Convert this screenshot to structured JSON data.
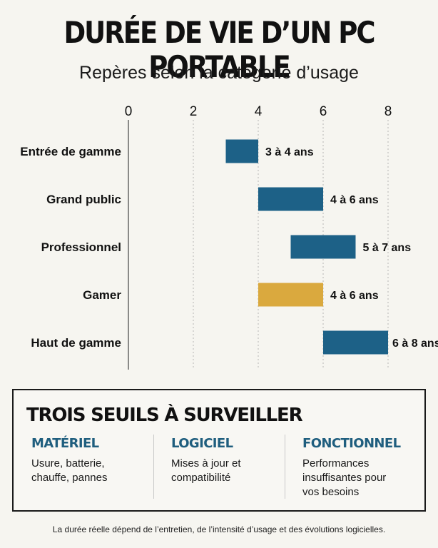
{
  "header": {
    "title": "DURÉE DE VIE D’UN PC PORTABLE",
    "subtitle": "Repères selon la catégorie d’usage"
  },
  "chart_data": {
    "type": "bar",
    "orientation": "horizontal-range",
    "title": "DURÉE DE VIE D’UN PC PORTABLE",
    "subtitle": "Repères selon la catégorie d’usage",
    "xlabel": "",
    "ylabel": "",
    "xlim": [
      0,
      8
    ],
    "xticks": [
      0,
      2,
      4,
      6,
      8
    ],
    "grid": "vertical-dotted",
    "legend": "none",
    "categories": [
      "Entrée de gamme",
      "Grand public",
      "Professionnel",
      "Gamer",
      "Haut de gamme"
    ],
    "ranges": [
      [
        3,
        4
      ],
      [
        4,
        6
      ],
      [
        5,
        7
      ],
      [
        4,
        6
      ],
      [
        6,
        8
      ]
    ],
    "labels": [
      "3 à 4 ans",
      "4 à 6 ans",
      "5 à 7 ans",
      "4 à 6 ans",
      "6 à 8 ans"
    ],
    "colors": [
      "#1d6187",
      "#1d6187",
      "#1d6187",
      "#daa93e",
      "#1d6187"
    ]
  },
  "thresholds": {
    "title": "TROIS SEUILS À SURVEILLER",
    "items": [
      {
        "heading": "MATÉRIEL",
        "lines": [
          "Usure, batterie,",
          "chauffe, pannes"
        ]
      },
      {
        "heading": "LOGICIEL",
        "lines": [
          "Mises à jour et",
          "compatibilité"
        ]
      },
      {
        "heading": "FONCTIONNEL",
        "lines": [
          "Performances",
          "insuffisantes pour",
          "vos besoins"
        ]
      }
    ]
  },
  "footnote": "La durée réelle dépend de l’entretien, de l’intensité d’usage et des évolutions logicielles.",
  "colors": {
    "accent_blue": "#1d6187",
    "accent_gold": "#daa93e",
    "heading_blue": "#1f5e7e"
  }
}
